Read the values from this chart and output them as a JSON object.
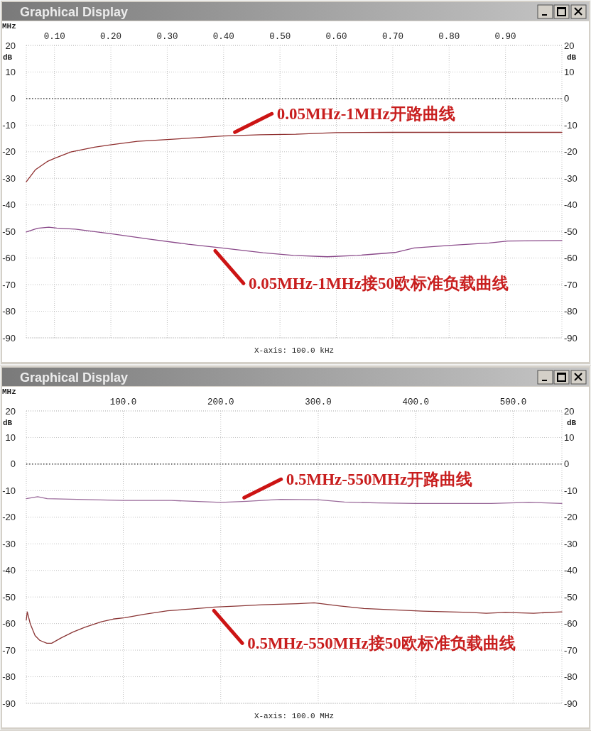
{
  "chart_data": [
    {
      "type": "line",
      "title": "Graphical Display",
      "xlabel": "MHz",
      "ylabel": "dB",
      "y2label": "dB",
      "xlim": [
        0.05,
        1.0
      ],
      "xticks": [
        {
          "value": 0.1,
          "label": "0.10"
        },
        {
          "value": 0.2,
          "label": "0.20"
        },
        {
          "value": 0.3,
          "label": "0.30"
        },
        {
          "value": 0.4,
          "label": "0.40"
        },
        {
          "value": 0.5,
          "label": "0.50"
        },
        {
          "value": 0.6,
          "label": "0.60"
        },
        {
          "value": 0.7,
          "label": "0.70"
        },
        {
          "value": 0.8,
          "label": "0.80"
        },
        {
          "value": 0.9,
          "label": "0.90"
        }
      ],
      "ylim": [
        -90,
        20
      ],
      "yticks": [
        20,
        10,
        0,
        -10,
        -20,
        -30,
        -40,
        -50,
        -60,
        -70,
        -80,
        -90
      ],
      "y2lim": [
        -90,
        20
      ],
      "y2ticks": [
        20,
        10,
        0,
        -10,
        -20,
        -30,
        -40,
        -50,
        -60,
        -70,
        -80,
        -90
      ],
      "grid": true,
      "ref_lines": [
        {
          "axis": "y",
          "value": 0,
          "color": "#000000",
          "line_style": "dotted"
        }
      ],
      "series": [
        {
          "color": "#8f2f2f",
          "x": [
            0.05,
            0.066,
            0.087,
            0.1,
            0.129,
            0.171,
            0.199,
            0.247,
            0.3,
            0.339,
            0.399,
            0.465,
            0.528,
            0.599,
            0.7,
            0.8,
            0.9,
            1.0
          ],
          "values": [
            -31.3,
            -26.8,
            -23.7,
            -22.5,
            -20.1,
            -18.3,
            -17.4,
            -16.1,
            -15.4,
            -14.9,
            -14.1,
            -13.6,
            -13.4,
            -12.8,
            -12.7,
            -12.7,
            -12.7,
            -12.7
          ]
        },
        {
          "color": "#8a4a8a",
          "x": [
            0.05,
            0.07,
            0.09,
            0.104,
            0.137,
            0.203,
            0.27,
            0.337,
            0.397,
            0.47,
            0.524,
            0.584,
            0.637,
            0.704,
            0.738,
            0.804,
            0.871,
            0.904,
            1.0
          ],
          "values": [
            -50.2,
            -48.8,
            -48.4,
            -48.7,
            -49.1,
            -50.9,
            -52.9,
            -54.8,
            -56.2,
            -58.0,
            -59.0,
            -59.5,
            -59.0,
            -57.9,
            -56.2,
            -55.2,
            -54.3,
            -53.6,
            -53.4
          ]
        }
      ],
      "annotations": [
        {
          "text": "0.05MHz-1MHz开路曲线",
          "x": 0.42,
          "y": -14.0
        },
        {
          "text": "0.05MHz-1MHz接50欧标准负载曲线",
          "x": 0.385,
          "y": -55.9
        },
        "X-axis: 100.0 kHz"
      ]
    },
    {
      "type": "line",
      "title": "Graphical Display",
      "xlabel": "MHz",
      "ylabel": "dB",
      "y2label": "dB",
      "xlim": [
        0.5,
        550
      ],
      "xticks": [
        {
          "value": 100,
          "label": "100.0"
        },
        {
          "value": 200,
          "label": "200.0"
        },
        {
          "value": 300,
          "label": "300.0"
        },
        {
          "value": 400,
          "label": "400.0"
        },
        {
          "value": 500,
          "label": "500.0"
        }
      ],
      "ylim": [
        -90,
        20
      ],
      "yticks": [
        20,
        10,
        0,
        -10,
        -20,
        -30,
        -40,
        -50,
        -60,
        -70,
        -80,
        -90
      ],
      "y2lim": [
        -90,
        20
      ],
      "y2ticks": [
        20,
        10,
        0,
        -10,
        -20,
        -30,
        -40,
        -50,
        -60,
        -70,
        -80,
        -90
      ],
      "grid": true,
      "ref_lines": [
        {
          "axis": "y",
          "value": 0,
          "color": "#000000",
          "line_style": "dotted"
        }
      ],
      "series": [
        {
          "color": "#9a6a9a",
          "x": [
            0.5,
            12.2,
            21.9,
            52.7,
            99.8,
            149.3,
            200.3,
            226.5,
            261.3,
            299.8,
            326.9,
            361.6,
            400.3,
            438.9,
            477.5,
            516.1,
            550
          ],
          "values": [
            -13.0,
            -12.3,
            -13.0,
            -13.3,
            -13.7,
            -13.7,
            -14.4,
            -14.0,
            -13.3,
            -13.4,
            -14.3,
            -14.6,
            -14.8,
            -14.8,
            -14.8,
            -14.4,
            -14.8
          ]
        },
        {
          "color": "#8a3535",
          "x": [
            0.5,
            1.5,
            4.6,
            9.5,
            14.3,
            21.6,
            26.5,
            36.2,
            48.3,
            60.5,
            77.4,
            89.6,
            101.7,
            121.1,
            145.3,
            169.6,
            193.9,
            218.1,
            242.4,
            278.8,
            295.8,
            322.5,
            346.7,
            371,
            407.3,
            455.4,
            472.4,
            492,
            521,
            550
          ],
          "values": [
            -58.7,
            -55.6,
            -60.1,
            -64.5,
            -66.3,
            -67.4,
            -67.4,
            -65.4,
            -63.2,
            -61.4,
            -59.3,
            -58.3,
            -57.8,
            -56.5,
            -55.2,
            -54.5,
            -53.8,
            -53.4,
            -52.9,
            -52.5,
            -52.2,
            -53.4,
            -54.3,
            -54.7,
            -55.3,
            -55.8,
            -56.1,
            -55.8,
            -56.1,
            -55.6
          ]
        }
      ],
      "annotations": [
        {
          "text": "0.5MHz-550MHz开路曲线",
          "x": 224,
          "y": -14.0
        },
        {
          "text": "0.5MHz-550MHz接50欧标准负载曲线",
          "x": 193,
          "y": -53.8
        },
        "X-axis: 100.0 MHz"
      ]
    }
  ]
}
